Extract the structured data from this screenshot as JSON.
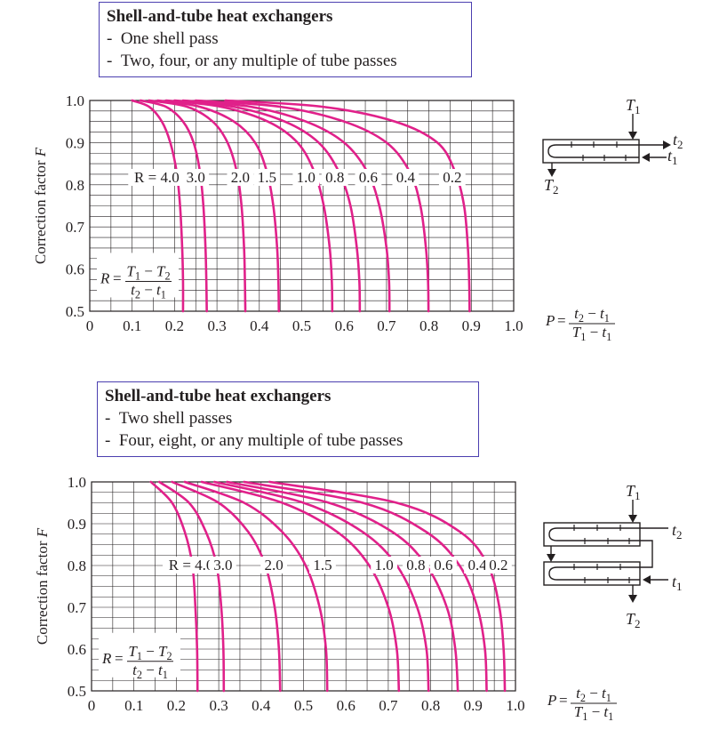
{
  "charts": [
    {
      "caption": {
        "title": "Shell-and-tube heat exchangers",
        "lines": [
          "One shell pass",
          "Two, four, or any multiple of tube passes"
        ]
      },
      "schematic_labels": {
        "T1": "T1",
        "T2": "T2",
        "t1": "t1",
        "t2": "t2"
      }
    },
    {
      "caption": {
        "title": "Shell-and-tube heat exchangers",
        "lines": [
          "Two shell passes",
          "Four, eight, or any multiple of tube passes"
        ]
      },
      "schematic_labels": {
        "T1": "T1",
        "T2": "T2",
        "t1": "t1",
        "t2": "t2"
      }
    }
  ],
  "chart_data": [
    {
      "type": "line",
      "ylabel": "Correction factor F",
      "xlabel": "P = (t2 − t1)/(T1 − t1)",
      "x_ticks": [
        "0",
        "0.1",
        "0.2",
        "0.3",
        "0.4",
        "0.5",
        "0.6",
        "0.7",
        "0.8",
        "0.9",
        "1.0"
      ],
      "y_ticks": [
        "1.0",
        "0.9",
        "0.8",
        "0.7",
        "0.6",
        "0.5"
      ],
      "xlim": [
        0,
        1.0
      ],
      "ylim": [
        0.5,
        1.0
      ],
      "grid": true,
      "param_formula": "R = (T1 − T2)/(t2 − t1)",
      "series_color": "#e0218a",
      "series": [
        {
          "name": "R = 4.0",
          "label": "R = 4.0",
          "label_P": 0.158,
          "x": [
            0.1,
            0.14,
            0.17,
            0.19,
            0.205,
            0.213,
            0.218,
            0.22,
            0.22
          ],
          "y": [
            1.0,
            0.985,
            0.95,
            0.9,
            0.83,
            0.75,
            0.65,
            0.57,
            0.5
          ]
        },
        {
          "name": "R = 3.0",
          "label": "3.0",
          "label_P": 0.25,
          "x": [
            0.12,
            0.18,
            0.22,
            0.245,
            0.26,
            0.268,
            0.273,
            0.275,
            0.276
          ],
          "y": [
            1.0,
            0.985,
            0.95,
            0.9,
            0.83,
            0.75,
            0.65,
            0.57,
            0.5
          ]
        },
        {
          "name": "R = 2.0",
          "label": "2.0",
          "label_P": 0.355,
          "x": [
            0.14,
            0.23,
            0.29,
            0.325,
            0.347,
            0.358,
            0.364,
            0.366,
            0.367
          ],
          "y": [
            1.0,
            0.985,
            0.95,
            0.9,
            0.83,
            0.75,
            0.65,
            0.57,
            0.5
          ]
        },
        {
          "name": "R = 1.5",
          "label": "1.5",
          "label_P": 0.418,
          "x": [
            0.16,
            0.26,
            0.34,
            0.39,
            0.418,
            0.433,
            0.442,
            0.445,
            0.446
          ],
          "y": [
            1.0,
            0.985,
            0.95,
            0.9,
            0.83,
            0.75,
            0.65,
            0.57,
            0.5
          ]
        },
        {
          "name": "R = 1.0",
          "label": "1.0",
          "label_P": 0.51,
          "x": [
            0.18,
            0.31,
            0.42,
            0.49,
            0.53,
            0.552,
            0.566,
            0.571,
            0.572
          ],
          "y": [
            1.0,
            0.985,
            0.95,
            0.9,
            0.83,
            0.75,
            0.65,
            0.57,
            0.5
          ]
        },
        {
          "name": "R = 0.8",
          "label": "0.8",
          "label_P": 0.578,
          "x": [
            0.2,
            0.34,
            0.46,
            0.54,
            0.588,
            0.615,
            0.63,
            0.636,
            0.637
          ],
          "y": [
            1.0,
            0.985,
            0.95,
            0.9,
            0.83,
            0.75,
            0.65,
            0.57,
            0.5
          ]
        },
        {
          "name": "R = 0.6",
          "label": "0.6",
          "label_P": 0.657,
          "x": [
            0.22,
            0.38,
            0.51,
            0.6,
            0.655,
            0.683,
            0.7,
            0.706,
            0.707
          ],
          "y": [
            1.0,
            0.985,
            0.95,
            0.9,
            0.83,
            0.75,
            0.65,
            0.57,
            0.5
          ]
        },
        {
          "name": "R = 0.4",
          "label": "0.4",
          "label_P": 0.745,
          "x": [
            0.25,
            0.45,
            0.6,
            0.7,
            0.755,
            0.78,
            0.793,
            0.798,
            0.799
          ],
          "y": [
            1.0,
            0.985,
            0.95,
            0.9,
            0.83,
            0.75,
            0.65,
            0.57,
            0.5
          ]
        },
        {
          "name": "R = 0.2",
          "label": "0.2",
          "label_P": 0.855,
          "x": [
            0.32,
            0.55,
            0.72,
            0.82,
            0.862,
            0.883,
            0.892,
            0.895,
            0.896
          ],
          "y": [
            1.0,
            0.985,
            0.95,
            0.9,
            0.83,
            0.75,
            0.65,
            0.57,
            0.5
          ]
        }
      ]
    },
    {
      "type": "line",
      "ylabel": "Correction factor F",
      "xlabel": "P = (t2 − t1)/(T1 − t1)",
      "x_ticks": [
        "0",
        "0.1",
        "0.2",
        "0.3",
        "0.4",
        "0.5",
        "0.6",
        "0.7",
        "0.8",
        "0.9",
        "1.0"
      ],
      "y_ticks": [
        "1.0",
        "0.9",
        "0.8",
        "0.7",
        "0.6",
        "0.5"
      ],
      "xlim": [
        0,
        1.0
      ],
      "ylim": [
        0.5,
        1.0
      ],
      "grid": true,
      "param_formula": "R = (T1 − T2)/(t2 − t1)",
      "series_color": "#e0218a",
      "series": [
        {
          "name": "R = 4.0",
          "label": "R = 4.0",
          "label_P": 0.235,
          "x": [
            0.14,
            0.19,
            0.22,
            0.238,
            0.245,
            0.249,
            0.25
          ],
          "y": [
            1.0,
            0.95,
            0.88,
            0.8,
            0.7,
            0.6,
            0.5
          ]
        },
        {
          "name": "R = 3.0",
          "label": "3.0",
          "label_P": 0.31,
          "x": [
            0.16,
            0.23,
            0.27,
            0.295,
            0.306,
            0.311,
            0.312
          ],
          "y": [
            1.0,
            0.95,
            0.88,
            0.8,
            0.7,
            0.6,
            0.5
          ]
        },
        {
          "name": "R = 2.0",
          "label": "2.0",
          "label_P": 0.43,
          "x": [
            0.19,
            0.3,
            0.37,
            0.41,
            0.432,
            0.442,
            0.445
          ],
          "y": [
            1.0,
            0.95,
            0.88,
            0.8,
            0.7,
            0.6,
            0.5
          ]
        },
        {
          "name": "R = 1.5",
          "label": "1.5",
          "label_P": 0.545,
          "x": [
            0.22,
            0.36,
            0.45,
            0.505,
            0.538,
            0.553,
            0.556
          ],
          "y": [
            1.0,
            0.95,
            0.88,
            0.8,
            0.7,
            0.6,
            0.5
          ]
        },
        {
          "name": "R = 1.0",
          "label": "1.0",
          "label_P": 0.69,
          "x": [
            0.26,
            0.45,
            0.58,
            0.655,
            0.7,
            0.72,
            0.725
          ],
          "y": [
            1.0,
            0.95,
            0.88,
            0.8,
            0.7,
            0.6,
            0.5
          ]
        },
        {
          "name": "R = 0.8",
          "label": "0.8",
          "label_P": 0.765,
          "x": [
            0.29,
            0.5,
            0.64,
            0.72,
            0.768,
            0.79,
            0.795
          ],
          "y": [
            1.0,
            0.95,
            0.88,
            0.8,
            0.7,
            0.6,
            0.5
          ]
        },
        {
          "name": "R = 0.6",
          "label": "0.6",
          "label_P": 0.83,
          "x": [
            0.32,
            0.56,
            0.71,
            0.79,
            0.838,
            0.858,
            0.864
          ],
          "y": [
            1.0,
            0.95,
            0.88,
            0.8,
            0.7,
            0.6,
            0.5
          ]
        },
        {
          "name": "R = 0.4",
          "label": "0.4",
          "label_P": 0.91,
          "x": [
            0.36,
            0.64,
            0.79,
            0.868,
            0.91,
            0.928,
            0.932
          ],
          "y": [
            1.0,
            0.95,
            0.88,
            0.8,
            0.7,
            0.6,
            0.5
          ]
        },
        {
          "name": "R = 0.2",
          "label": "0.2",
          "label_P": 0.96,
          "x": [
            0.42,
            0.72,
            0.87,
            0.935,
            0.962,
            0.972,
            0.975
          ],
          "y": [
            1.0,
            0.95,
            0.88,
            0.8,
            0.7,
            0.6,
            0.5
          ]
        }
      ]
    }
  ]
}
